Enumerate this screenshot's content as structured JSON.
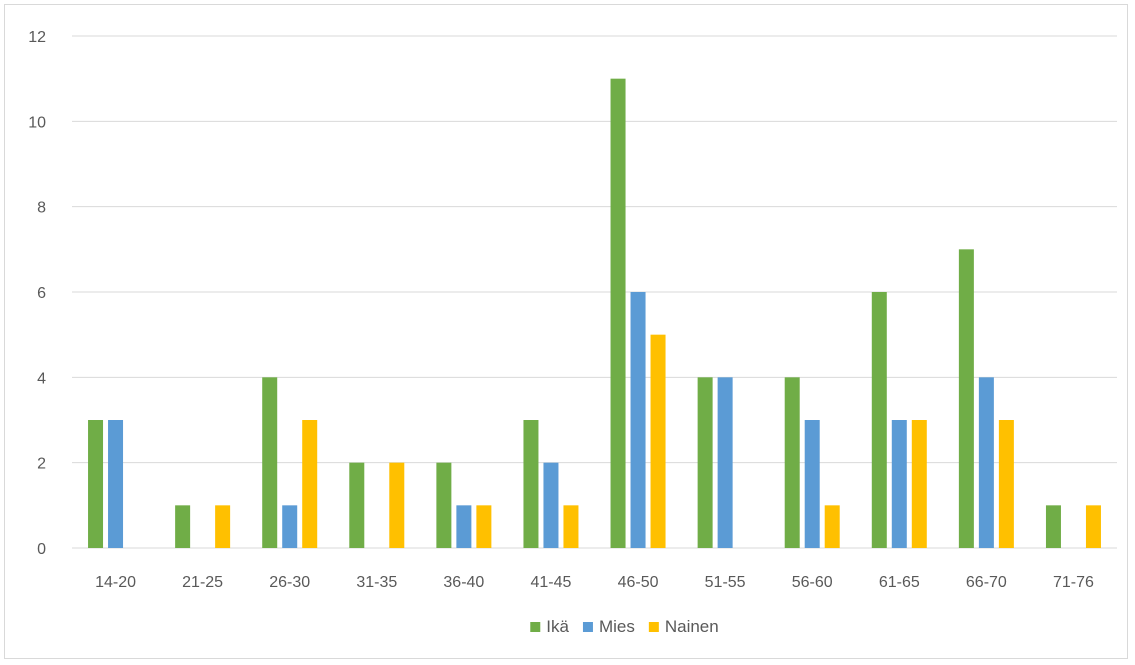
{
  "chart_data": {
    "type": "bar",
    "categories": [
      "14-20",
      "21-25",
      "26-30",
      "31-35",
      "36-40",
      "41-45",
      "46-50",
      "51-55",
      "56-60",
      "61-65",
      "66-70",
      "71-76"
    ],
    "series": [
      {
        "name": "Ikä",
        "color": "#70ad47",
        "values": [
          3,
          1,
          4,
          2,
          2,
          3,
          11,
          4,
          4,
          6,
          7,
          1
        ]
      },
      {
        "name": "Mies",
        "color": "#5b9bd5",
        "values": [
          3,
          0,
          1,
          0,
          1,
          2,
          6,
          4,
          3,
          3,
          4,
          0
        ]
      },
      {
        "name": "Nainen",
        "color": "#ffc000",
        "values": [
          0,
          1,
          3,
          2,
          1,
          1,
          5,
          0,
          1,
          3,
          3,
          1
        ]
      }
    ],
    "ylim": [
      0,
      12
    ],
    "yticks": [
      0,
      2,
      4,
      6,
      8,
      10,
      12
    ],
    "grid": true,
    "legend_position": "bottom",
    "title": "",
    "xlabel": "",
    "ylabel": ""
  }
}
